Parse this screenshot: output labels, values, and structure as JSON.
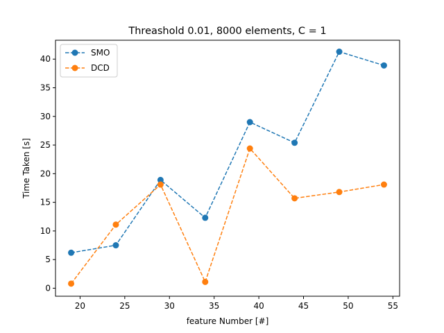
{
  "chart_data": {
    "type": "line",
    "title": "Threashold 0.01, 8000 elements,  C = 1",
    "xlabel": "feature Number [#]",
    "ylabel": "Time Taken [s]",
    "x": [
      19,
      24,
      29,
      34,
      39,
      44,
      49,
      54
    ],
    "xlim": [
      17.25,
      55.75
    ],
    "ylim": [
      -1.4,
      43.3
    ],
    "xticks": [
      20,
      25,
      30,
      35,
      40,
      45,
      50,
      55
    ],
    "yticks": [
      0,
      5,
      10,
      15,
      20,
      25,
      30,
      35,
      40
    ],
    "grid": false,
    "legend_position": "top-left",
    "series": [
      {
        "name": "SMO",
        "color": "#1f77b4",
        "line_style": "dashed",
        "marker": "circle",
        "values": [
          6.2,
          7.5,
          18.9,
          12.3,
          29.0,
          25.4,
          41.3,
          38.9
        ]
      },
      {
        "name": "DCD",
        "color": "#ff7f0e",
        "line_style": "dashed",
        "marker": "circle",
        "values": [
          0.8,
          11.1,
          18.1,
          1.1,
          24.4,
          15.7,
          16.8,
          18.1
        ]
      }
    ]
  }
}
